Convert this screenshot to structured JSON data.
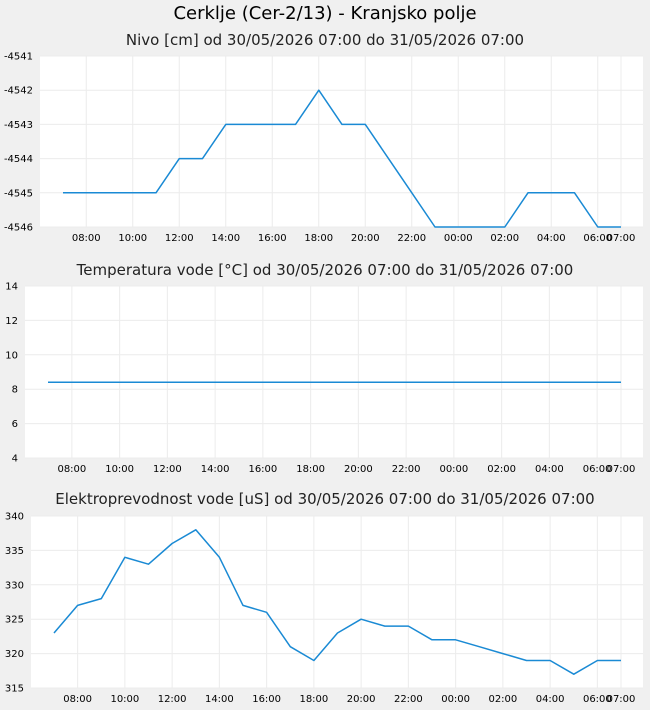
{
  "title": "Cerklje (Cer-2/13) - Kranjsko polje",
  "chart_data": [
    {
      "type": "line",
      "title": "Nivo [cm] od 30/05/2026 07:00 do 31/05/2026 07:00",
      "color": "#1a8ad4",
      "x": [
        "07:00",
        "08:00",
        "09:00",
        "10:00",
        "11:00",
        "12:00",
        "13:00",
        "14:00",
        "15:00",
        "16:00",
        "17:00",
        "18:00",
        "19:00",
        "20:00",
        "21:00",
        "22:00",
        "23:00",
        "00:00",
        "01:00",
        "02:00",
        "03:00",
        "04:00",
        "05:00",
        "06:00",
        "07:00"
      ],
      "series": [
        {
          "values": [
            -4545,
            -4545,
            -4545,
            -4545,
            -4545,
            -4544,
            -4544,
            -4543,
            -4543,
            -4543,
            -4543,
            -4542,
            -4543,
            -4543,
            -4544,
            -4545,
            -4546,
            -4546,
            -4546,
            -4546,
            -4545,
            -4545,
            -4545,
            -4546,
            -4546
          ]
        }
      ],
      "yticks": [
        -4541,
        -4542,
        -4543,
        -4544,
        -4545,
        -4546
      ],
      "ylim": [
        -4546,
        -4541
      ],
      "xticks": [
        "08:00",
        "10:00",
        "12:00",
        "14:00",
        "16:00",
        "18:00",
        "20:00",
        "22:00",
        "00:00",
        "02:00",
        "04:00",
        "06:00",
        "07:00"
      ],
      "grid": true
    },
    {
      "type": "line",
      "title": "Temperatura vode [°C] od 30/05/2026 07:00 do 31/05/2026 07:00",
      "color": "#1a8ad4",
      "x": [
        "07:00",
        "08:00",
        "09:00",
        "10:00",
        "11:00",
        "12:00",
        "13:00",
        "14:00",
        "15:00",
        "16:00",
        "17:00",
        "18:00",
        "19:00",
        "20:00",
        "21:00",
        "22:00",
        "23:00",
        "00:00",
        "01:00",
        "02:00",
        "03:00",
        "04:00",
        "05:00",
        "06:00",
        "07:00"
      ],
      "series": [
        {
          "values": [
            8.4,
            8.4,
            8.4,
            8.4,
            8.4,
            8.4,
            8.4,
            8.4,
            8.4,
            8.4,
            8.4,
            8.4,
            8.4,
            8.4,
            8.4,
            8.4,
            8.4,
            8.4,
            8.4,
            8.4,
            8.4,
            8.4,
            8.4,
            8.4,
            8.4
          ]
        }
      ],
      "yticks": [
        14,
        12,
        10,
        8,
        6,
        4
      ],
      "ylim": [
        4,
        14
      ],
      "xticks": [
        "08:00",
        "10:00",
        "12:00",
        "14:00",
        "16:00",
        "18:00",
        "20:00",
        "22:00",
        "00:00",
        "02:00",
        "04:00",
        "06:00",
        "07:00"
      ],
      "grid": true
    },
    {
      "type": "line",
      "title": "Elektroprevodnost vode [uS] od 30/05/2026 07:00 do 31/05/2026 07:00",
      "color": "#1a8ad4",
      "x": [
        "07:00",
        "08:00",
        "09:00",
        "10:00",
        "11:00",
        "12:00",
        "13:00",
        "14:00",
        "15:00",
        "16:00",
        "17:00",
        "18:00",
        "19:00",
        "20:00",
        "21:00",
        "22:00",
        "23:00",
        "00:00",
        "01:00",
        "02:00",
        "03:00",
        "04:00",
        "05:00",
        "06:00",
        "07:00"
      ],
      "series": [
        {
          "values": [
            323,
            327,
            328,
            334,
            333,
            336,
            338,
            334,
            327,
            326,
            321,
            319,
            323,
            325,
            324,
            324,
            322,
            322,
            321,
            320,
            319,
            319,
            317,
            319,
            319
          ]
        }
      ],
      "yticks": [
        340,
        335,
        330,
        325,
        320,
        315
      ],
      "ylim": [
        315,
        340
      ],
      "xticks": [
        "08:00",
        "10:00",
        "12:00",
        "14:00",
        "16:00",
        "18:00",
        "20:00",
        "22:00",
        "00:00",
        "02:00",
        "04:00",
        "06:00",
        "07:00"
      ],
      "grid": true
    }
  ]
}
